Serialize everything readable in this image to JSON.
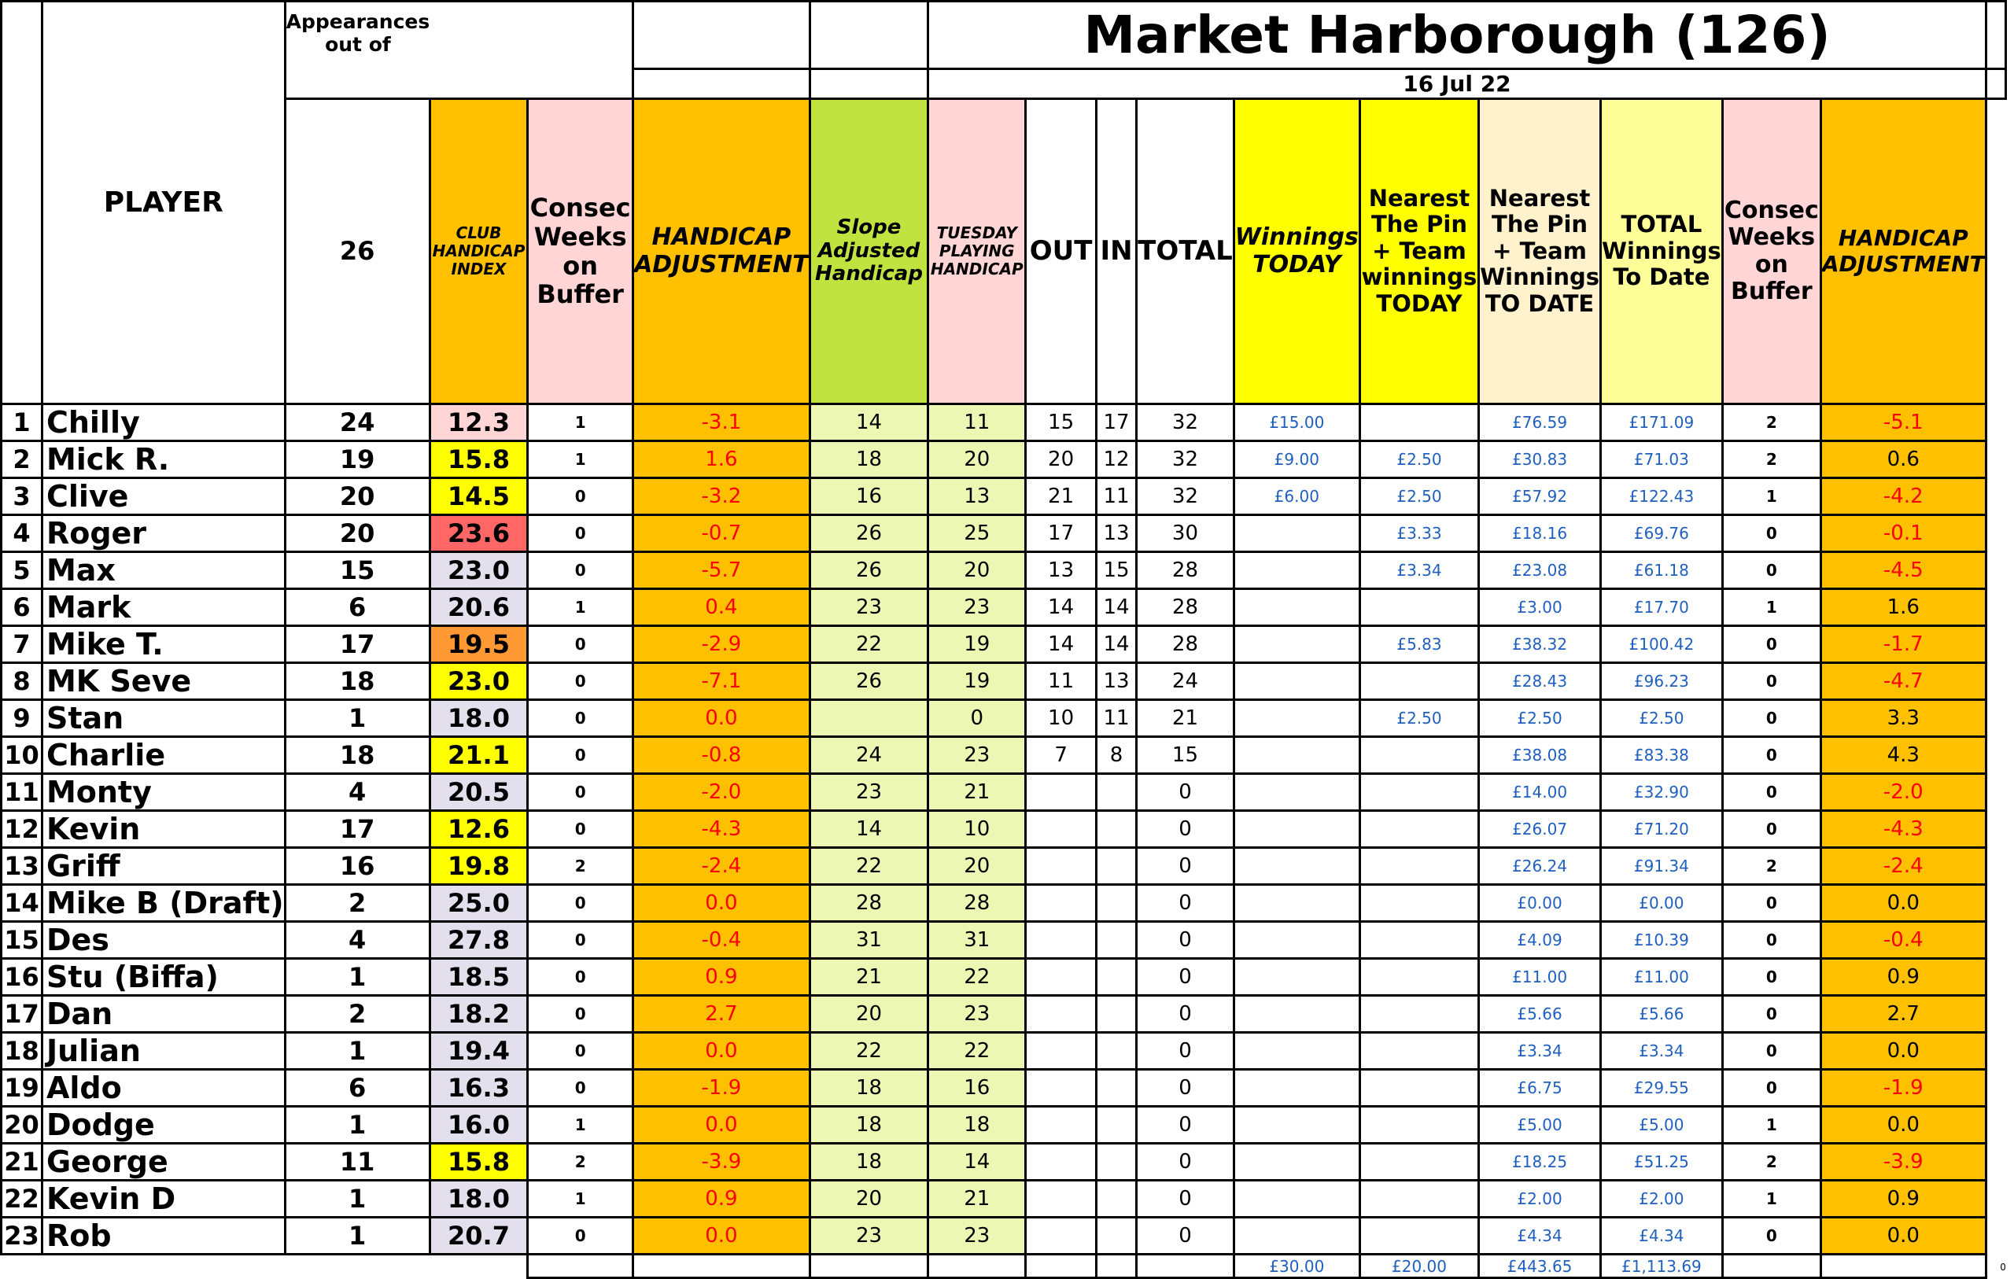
{
  "title": "Market Harborough (126)",
  "date": "16 Jul 22",
  "appearances_label": "Appearances out of",
  "total_rounds": "26",
  "headers": {
    "player": "PLAYER",
    "club_handicap": "CLUB HANDICAP INDEX",
    "consec_weeks": "Consec Weeks on Buffer",
    "handicap_adjustment": "HANDICAP ADJUSTMENT",
    "slope": "Slope Adjusted Handicap",
    "tuesday": "TUESDAY PLAYING HANDICAP",
    "out": "OUT",
    "in": "IN",
    "total": "TOTAL",
    "winnings_today": "Winnings TODAY",
    "ntp_today": "Nearest The Pin + Team winnings TODAY",
    "ntp_to_date": "Nearest The Pin + Team Winnings TO DATE",
    "total_winnings": "TOTAL Winnings To Date",
    "consec_weeks2": "Consec Weeks on Buffer",
    "handicap_adjustment2": "HANDICAP ADJUSTMENT"
  },
  "colors": {
    "orange": "#ffc000",
    "pink": "#ffd5d5",
    "green": "#c0e340",
    "yellow": "#ffff00",
    "cream": "#fff2cc",
    "lightyellow": "#ffff99",
    "lightgreen": "#ecf7b4",
    "lavender": "#e3dfed",
    "red_hl": "#ff6666",
    "orange_hl": "#ff9933"
  },
  "rows": [
    {
      "n": "1",
      "name": "Chilly",
      "app": "24",
      "hci": "12.3",
      "hci_bg": "pink",
      "cw": "1",
      "adj": "-3.1",
      "slope": "14",
      "tue": "11",
      "out": "15",
      "in": "17",
      "total": "32",
      "win": "£15.00",
      "ntp": "",
      "ntpd": "£76.59",
      "tot": "£171.09",
      "cw2": "2",
      "adj2": "-5.1"
    },
    {
      "n": "2",
      "name": "Mick R.",
      "app": "19",
      "hci": "15.8",
      "hci_bg": "yellow",
      "cw": "1",
      "adj": "1.6",
      "slope": "18",
      "tue": "20",
      "out": "20",
      "in": "12",
      "total": "32",
      "win": "£9.00",
      "ntp": "£2.50",
      "ntpd": "£30.83",
      "tot": "£71.03",
      "cw2": "2",
      "adj2": "0.6"
    },
    {
      "n": "3",
      "name": "Clive",
      "app": "20",
      "hci": "14.5",
      "hci_bg": "yellow",
      "cw": "0",
      "adj": "-3.2",
      "slope": "16",
      "tue": "13",
      "out": "21",
      "in": "11",
      "total": "32",
      "win": "£6.00",
      "ntp": "£2.50",
      "ntpd": "£57.92",
      "tot": "£122.43",
      "cw2": "1",
      "adj2": "-4.2"
    },
    {
      "n": "4",
      "name": "Roger",
      "app": "20",
      "hci": "23.6",
      "hci_bg": "red_hl",
      "cw": "0",
      "adj": "-0.7",
      "slope": "26",
      "tue": "25",
      "out": "17",
      "in": "13",
      "total": "30",
      "win": "",
      "ntp": "£3.33",
      "ntpd": "£18.16",
      "tot": "£69.76",
      "cw2": "0",
      "adj2": "-0.1"
    },
    {
      "n": "5",
      "name": "Max",
      "app": "15",
      "hci": "23.0",
      "hci_bg": "lavender",
      "cw": "0",
      "adj": "-5.7",
      "slope": "26",
      "tue": "20",
      "out": "13",
      "in": "15",
      "total": "28",
      "win": "",
      "ntp": "£3.34",
      "ntpd": "£23.08",
      "tot": "£61.18",
      "cw2": "0",
      "adj2": "-4.5"
    },
    {
      "n": "6",
      "name": "Mark",
      "app": "6",
      "hci": "20.6",
      "hci_bg": "lavender",
      "cw": "1",
      "adj": "0.4",
      "slope": "23",
      "tue": "23",
      "out": "14",
      "in": "14",
      "total": "28",
      "win": "",
      "ntp": "",
      "ntpd": "£3.00",
      "tot": "£17.70",
      "cw2": "1",
      "adj2": "1.6"
    },
    {
      "n": "7",
      "name": "Mike T.",
      "app": "17",
      "hci": "19.5",
      "hci_bg": "orange_hl",
      "cw": "0",
      "adj": "-2.9",
      "slope": "22",
      "tue": "19",
      "out": "14",
      "in": "14",
      "total": "28",
      "win": "",
      "ntp": "£5.83",
      "ntpd": "£38.32",
      "tot": "£100.42",
      "cw2": "0",
      "adj2": "-1.7"
    },
    {
      "n": "8",
      "name": "MK Seve",
      "app": "18",
      "hci": "23.0",
      "hci_bg": "yellow",
      "cw": "0",
      "adj": "-7.1",
      "slope": "26",
      "tue": "19",
      "out": "11",
      "in": "13",
      "total": "24",
      "win": "",
      "ntp": "",
      "ntpd": "£28.43",
      "tot": "£96.23",
      "cw2": "0",
      "adj2": "-4.7"
    },
    {
      "n": "9",
      "name": "Stan",
      "app": "1",
      "hci": "18.0",
      "hci_bg": "lavender",
      "cw": "0",
      "adj": "0.0",
      "slope": "",
      "tue": "0",
      "out": "10",
      "in": "11",
      "total": "21",
      "win": "",
      "ntp": "£2.50",
      "ntpd": "£2.50",
      "tot": "£2.50",
      "cw2": "0",
      "adj2": "3.3"
    },
    {
      "n": "10",
      "name": "Charlie",
      "app": "18",
      "hci": "21.1",
      "hci_bg": "yellow",
      "cw": "0",
      "adj": "-0.8",
      "slope": "24",
      "tue": "23",
      "out": "7",
      "in": "8",
      "total": "15",
      "win": "",
      "ntp": "",
      "ntpd": "£38.08",
      "tot": "£83.38",
      "cw2": "0",
      "adj2": "4.3"
    },
    {
      "n": "11",
      "name": "Monty",
      "app": "4",
      "hci": "20.5",
      "hci_bg": "lavender",
      "cw": "0",
      "adj": "-2.0",
      "slope": "23",
      "tue": "21",
      "out": "",
      "in": "",
      "total": "0",
      "win": "",
      "ntp": "",
      "ntpd": "£14.00",
      "tot": "£32.90",
      "cw2": "0",
      "adj2": "-2.0"
    },
    {
      "n": "12",
      "name": "Kevin",
      "app": "17",
      "hci": "12.6",
      "hci_bg": "yellow",
      "cw": "0",
      "adj": "-4.3",
      "slope": "14",
      "tue": "10",
      "out": "",
      "in": "",
      "total": "0",
      "win": "",
      "ntp": "",
      "ntpd": "£26.07",
      "tot": "£71.20",
      "cw2": "0",
      "adj2": "-4.3"
    },
    {
      "n": "13",
      "name": "Griff",
      "app": "16",
      "hci": "19.8",
      "hci_bg": "yellow",
      "cw": "2",
      "adj": "-2.4",
      "slope": "22",
      "tue": "20",
      "out": "",
      "in": "",
      "total": "0",
      "win": "",
      "ntp": "",
      "ntpd": "£26.24",
      "tot": "£91.34",
      "cw2": "2",
      "adj2": "-2.4"
    },
    {
      "n": "14",
      "name": "Mike B (Draft)",
      "app": "2",
      "hci": "25.0",
      "hci_bg": "lavender",
      "cw": "0",
      "adj": "0.0",
      "slope": "28",
      "tue": "28",
      "out": "",
      "in": "",
      "total": "0",
      "win": "",
      "ntp": "",
      "ntpd": "£0.00",
      "tot": "£0.00",
      "cw2": "0",
      "adj2": "0.0"
    },
    {
      "n": "15",
      "name": "Des",
      "app": "4",
      "hci": "27.8",
      "hci_bg": "lavender",
      "cw": "0",
      "adj": "-0.4",
      "slope": "31",
      "tue": "31",
      "out": "",
      "in": "",
      "total": "0",
      "win": "",
      "ntp": "",
      "ntpd": "£4.09",
      "tot": "£10.39",
      "cw2": "0",
      "adj2": "-0.4"
    },
    {
      "n": "16",
      "name": "Stu (Biffa)",
      "app": "1",
      "hci": "18.5",
      "hci_bg": "lavender",
      "cw": "0",
      "adj": "0.9",
      "slope": "21",
      "tue": "22",
      "out": "",
      "in": "",
      "total": "0",
      "win": "",
      "ntp": "",
      "ntpd": "£11.00",
      "tot": "£11.00",
      "cw2": "0",
      "adj2": "0.9"
    },
    {
      "n": "17",
      "name": "Dan",
      "app": "2",
      "hci": "18.2",
      "hci_bg": "lavender",
      "cw": "0",
      "adj": "2.7",
      "slope": "20",
      "tue": "23",
      "out": "",
      "in": "",
      "total": "0",
      "win": "",
      "ntp": "",
      "ntpd": "£5.66",
      "tot": "£5.66",
      "cw2": "0",
      "adj2": "2.7"
    },
    {
      "n": "18",
      "name": "Julian",
      "app": "1",
      "hci": "19.4",
      "hci_bg": "lavender",
      "cw": "0",
      "adj": "0.0",
      "slope": "22",
      "tue": "22",
      "out": "",
      "in": "",
      "total": "0",
      "win": "",
      "ntp": "",
      "ntpd": "£3.34",
      "tot": "£3.34",
      "cw2": "0",
      "adj2": "0.0"
    },
    {
      "n": "19",
      "name": "Aldo",
      "app": "6",
      "hci": "16.3",
      "hci_bg": "lavender",
      "cw": "0",
      "adj": "-1.9",
      "slope": "18",
      "tue": "16",
      "out": "",
      "in": "",
      "total": "0",
      "win": "",
      "ntp": "",
      "ntpd": "£6.75",
      "tot": "£29.55",
      "cw2": "0",
      "adj2": "-1.9"
    },
    {
      "n": "20",
      "name": "Dodge",
      "app": "1",
      "hci": "16.0",
      "hci_bg": "lavender",
      "cw": "1",
      "adj": "0.0",
      "slope": "18",
      "tue": "18",
      "out": "",
      "in": "",
      "total": "0",
      "win": "",
      "ntp": "",
      "ntpd": "£5.00",
      "tot": "£5.00",
      "cw2": "1",
      "adj2": "0.0"
    },
    {
      "n": "21",
      "name": "George",
      "app": "11",
      "hci": "15.8",
      "hci_bg": "yellow",
      "cw": "2",
      "adj": "-3.9",
      "slope": "18",
      "tue": "14",
      "out": "",
      "in": "",
      "total": "0",
      "win": "",
      "ntp": "",
      "ntpd": "£18.25",
      "tot": "£51.25",
      "cw2": "2",
      "adj2": "-3.9"
    },
    {
      "n": "22",
      "name": "Kevin D",
      "app": "1",
      "hci": "18.0",
      "hci_bg": "lavender",
      "cw": "1",
      "adj": "0.9",
      "slope": "20",
      "tue": "21",
      "out": "",
      "in": "",
      "total": "0",
      "win": "",
      "ntp": "",
      "ntpd": "£2.00",
      "tot": "£2.00",
      "cw2": "1",
      "adj2": "0.9"
    },
    {
      "n": "23",
      "name": "Rob",
      "app": "1",
      "hci": "20.7",
      "hci_bg": "lavender",
      "cw": "0",
      "adj": "0.0",
      "slope": "23",
      "tue": "23",
      "out": "",
      "in": "",
      "total": "0",
      "win": "",
      "ntp": "",
      "ntpd": "£4.34",
      "tot": "£4.34",
      "cw2": "0",
      "adj2": "0.0"
    }
  ],
  "totals": {
    "win": "£30.00",
    "ntp": "£20.00",
    "ntpd": "£443.65",
    "tot": "£1,113.69",
    "zero": "0"
  }
}
